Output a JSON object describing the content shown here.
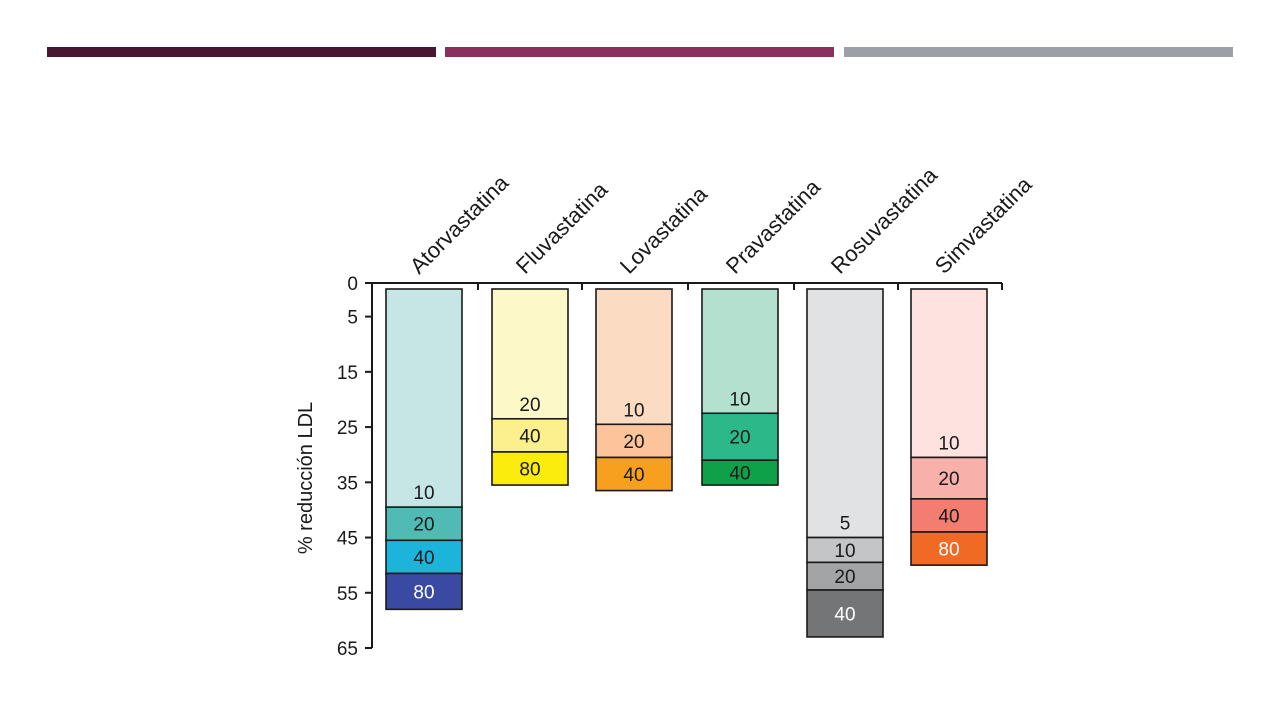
{
  "slide": {
    "rule_colors": [
      "#4a1530",
      "#8b2f5f",
      "#9aa0a6"
    ]
  },
  "chart_data": {
    "type": "bar",
    "ylabel": "% reducción LDL",
    "ylim": [
      0,
      65
    ],
    "y_inverted": true,
    "yticks": [
      0,
      5,
      15,
      25,
      35,
      45,
      55,
      65
    ],
    "categories": [
      "Atorvastatina",
      "Fluvastatina",
      "Lovastatina",
      "Pravastatina",
      "Rosuvastatina",
      "Simvastatina"
    ],
    "series": [
      {
        "drug": "Atorvastatina",
        "segments": [
          {
            "dose": "10",
            "value": 39.5,
            "color": "#c6e6e6"
          },
          {
            "dose": "20",
            "value": 45.5,
            "color": "#52bab5"
          },
          {
            "dose": "40",
            "value": 51.5,
            "color": "#1db4dc"
          },
          {
            "dose": "80",
            "value": 58.0,
            "color": "#3a4aa2"
          }
        ]
      },
      {
        "drug": "Fluvastatina",
        "segments": [
          {
            "dose": "20",
            "value": 23.5,
            "color": "#fdf8c8"
          },
          {
            "dose": "40",
            "value": 29.5,
            "color": "#fcf08e"
          },
          {
            "dose": "80",
            "value": 35.5,
            "color": "#fcec0e"
          }
        ]
      },
      {
        "drug": "Lovastatina",
        "segments": [
          {
            "dose": "10",
            "value": 24.5,
            "color": "#fbdcc2"
          },
          {
            "dose": "20",
            "value": 30.5,
            "color": "#fbc49a"
          },
          {
            "dose": "40",
            "value": 36.5,
            "color": "#f7a020"
          }
        ]
      },
      {
        "drug": "Pravastatina",
        "segments": [
          {
            "dose": "10",
            "value": 22.5,
            "color": "#b4e0d0"
          },
          {
            "dose": "20",
            "value": 31.0,
            "color": "#2db88a"
          },
          {
            "dose": "40",
            "value": 35.5,
            "color": "#0fa04a"
          }
        ]
      },
      {
        "drug": "Rosuvastatina",
        "segments": [
          {
            "dose": "5",
            "value": 45.0,
            "color": "#e1e2e3"
          },
          {
            "dose": "10",
            "value": 49.5,
            "color": "#c4c5c6"
          },
          {
            "dose": "20",
            "value": 54.5,
            "color": "#a3a4a6"
          },
          {
            "dose": "40",
            "value": 63.0,
            "color": "#747577"
          }
        ]
      },
      {
        "drug": "Simvastatina",
        "segments": [
          {
            "dose": "10",
            "value": 30.5,
            "color": "#fde2e0"
          },
          {
            "dose": "20",
            "value": 38.0,
            "color": "#f8b0aa"
          },
          {
            "dose": "40",
            "value": 44.0,
            "color": "#f27d70"
          },
          {
            "dose": "80",
            "value": 50.0,
            "color": "#f06a26"
          }
        ]
      }
    ]
  }
}
